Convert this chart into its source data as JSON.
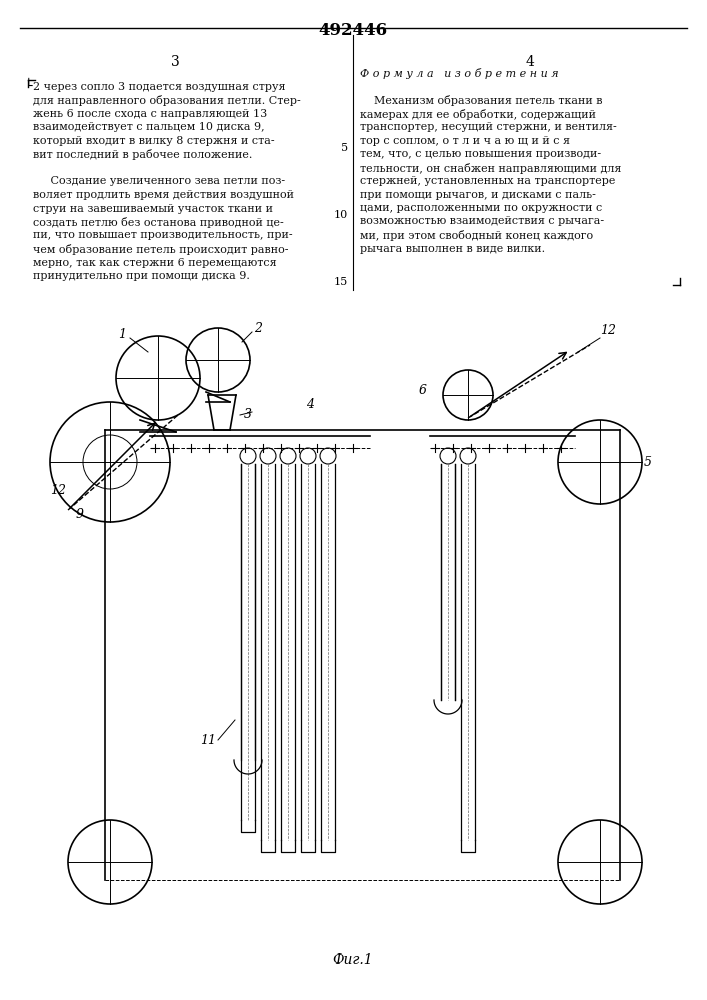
{
  "title": "492446",
  "fig_label": "Фиг.1",
  "page_left": "3",
  "page_right": "4",
  "bg_color": "#f5f5f0",
  "text_color": "#111111",
  "lw": 1.2,
  "thin_lw": 0.7,
  "text_left_top": "2 через сопло 3 подается воздушная струя",
  "text_left_lines": [
    "2 через сопло 3 подается воздушная струя",
    "для направленного образования петли. Стер-",
    "жень 6 после схода с направляющей 13",
    "взаимодействует с пальцем 10 диска 9,",
    "который входит в вилку 8 стержня и ста-",
    "вит последний в рабочее положение.",
    "",
    "     Создание увеличенного зева петли поз-",
    "воляет продлить время действия воздушной",
    "струи на завешиваемый участок ткани и",
    "создать петлю без останова приводной це-",
    "пи, что повышает производительность, при-",
    "чем образование петель происходит равно-",
    "мерно, так как стержни 6 перемещаются",
    "принудительно при помощи диска 9."
  ],
  "text_right_lines": [
    "Ф о р м у л а   и з о б р е т е н и я",
    "",
    "    Механизм образования петель ткани в",
    "камерах для ее обработки, содержащий",
    "транспортер, несущий стержни, и вентиля-",
    "тор с соплом, о т л и ч а ю щ и й с я",
    "тем, что, с целью повышения производи-",
    "тельности, он снабжен направляющими для",
    "стержней, установленных на транспортере",
    "при помощи рычагов, и дисками с паль-",
    "цами, расположенными по окружности с",
    "возможностью взаимодействия с рычага-",
    "ми, при этом свободный конец каждого",
    "рычага выполнен в виде вилки."
  ]
}
